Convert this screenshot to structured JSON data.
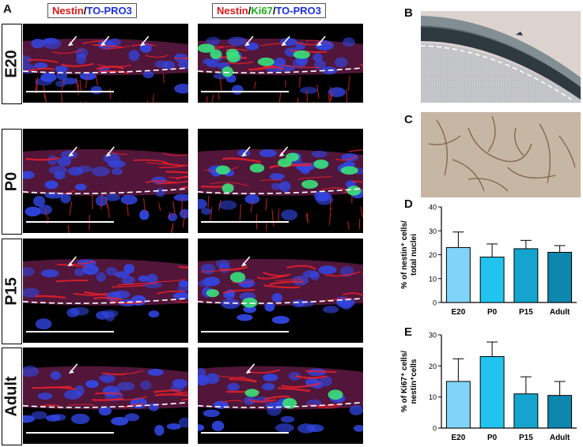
{
  "panels": {
    "A": "A",
    "B": "B",
    "C": "C",
    "D": "D",
    "E": "E"
  },
  "legend_left": {
    "nestin": "Nestin",
    "slash1": "/",
    "topro": "TO-PRO3"
  },
  "legend_right": {
    "nestin": "Nestin",
    "slash1": "/",
    "ki67": "Ki67",
    "slash2": "/",
    "topro": "TO-PRO3"
  },
  "rows": [
    {
      "label": "E20"
    },
    {
      "label": "P0"
    },
    {
      "label": "P15"
    },
    {
      "label": "Adult"
    }
  ],
  "colors": {
    "nestin_red": "#e0161b",
    "topro_blue": "#1b2fe0",
    "ki67_green": "#18b018"
  },
  "chart_data": [
    {
      "type": "bar",
      "panel": "D",
      "categories": [
        "E20",
        "P0",
        "P15",
        "Adult"
      ],
      "values": [
        23,
        19,
        22.5,
        21
      ],
      "errors": [
        6.5,
        5.5,
        3.5,
        2.8
      ],
      "ylabel_lines": [
        "% of nestin⁺ cells/",
        "total nuclei"
      ],
      "yticks": [
        "0",
        "10",
        "20",
        "30",
        "40"
      ],
      "ylim": [
        0,
        40
      ],
      "colors": [
        "#80d4f7",
        "#22c4ef",
        "#14a5cf",
        "#0e87ae"
      ]
    },
    {
      "type": "bar",
      "panel": "E",
      "categories": [
        "E20",
        "P0",
        "P15",
        "Adult"
      ],
      "values": [
        15,
        23,
        11,
        10.5
      ],
      "errors": [
        7.3,
        4.7,
        5.5,
        4.5
      ],
      "ylabel_lines": [
        "% of Ki67⁺ cells/",
        "nestin⁺cells"
      ],
      "yticks": [
        "0",
        "10",
        "20",
        "30"
      ],
      "ylim": [
        0,
        30
      ],
      "colors": [
        "#80d4f7",
        "#22c4ef",
        "#14a5cf",
        "#0e87ae"
      ]
    }
  ]
}
